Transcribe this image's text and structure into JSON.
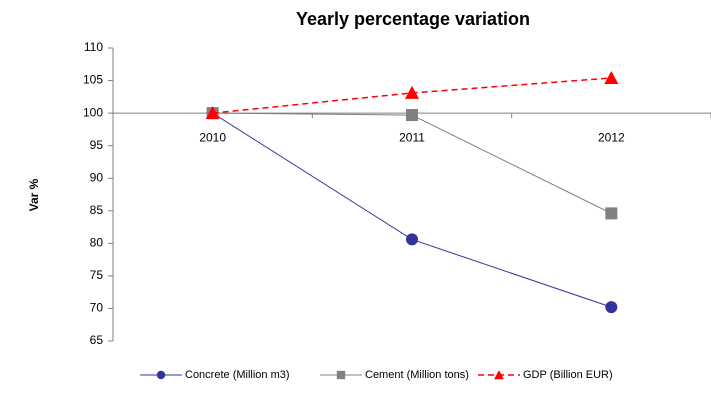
{
  "chart_data": {
    "type": "line",
    "title": "Yearly percentage variation",
    "y_label": "Var %",
    "categories": [
      "2010",
      "2011",
      "2012"
    ],
    "series": [
      {
        "name": "Concrete (Million m3)",
        "color": "#333399",
        "marker": "circle",
        "dashed": false,
        "values": [
          100,
          80.6,
          70.2
        ]
      },
      {
        "name": "Cement (Million tons)",
        "color": "#808080",
        "marker": "square",
        "dashed": false,
        "values": [
          100,
          99.7,
          84.6
        ]
      },
      {
        "name": "GDP (Billion EUR)",
        "color": "#ff0000",
        "marker": "triangle",
        "dashed": true,
        "values": [
          100,
          103.1,
          105.4
        ]
      }
    ],
    "ylim": [
      65,
      110
    ],
    "yticks": [
      65,
      70,
      75,
      80,
      85,
      90,
      95,
      100,
      105,
      110
    ],
    "x_axis_crosses": 100,
    "grid": false,
    "legend": "bottom"
  }
}
